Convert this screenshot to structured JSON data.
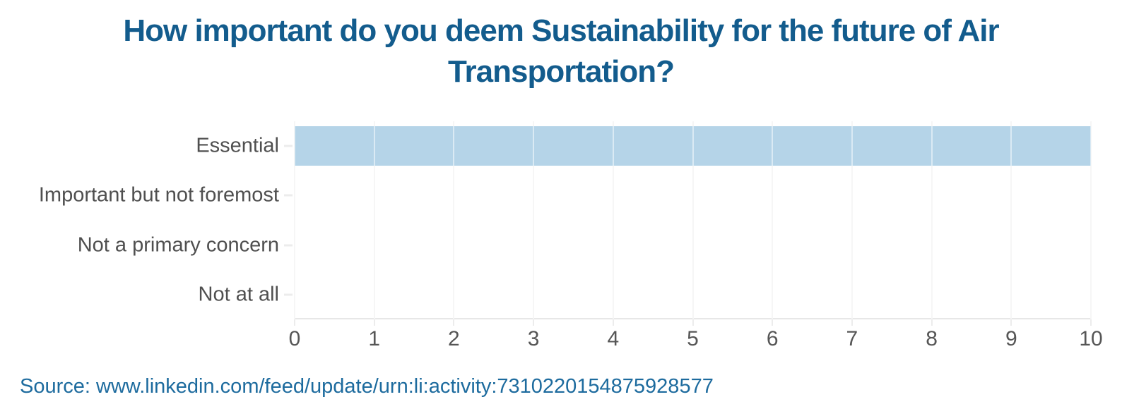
{
  "chart_data": {
    "type": "bar",
    "orientation": "horizontal",
    "title": "How important do you deem Sustainability for the future of Air Transportation?",
    "title_lines": [
      "How important do you deem Sustainability for the future of Air",
      "Transportation?"
    ],
    "categories": [
      "Essential",
      "Important but not foremost",
      "Not a primary concern",
      "Not at all"
    ],
    "values": [
      10,
      0,
      0,
      0
    ],
    "xlabel": "",
    "ylabel": "",
    "xlim": [
      0,
      10
    ],
    "x_ticks": [
      0,
      1,
      2,
      3,
      4,
      5,
      6,
      7,
      8,
      9,
      10
    ],
    "grid": true,
    "legend": false,
    "colors": {
      "bar": "#b5d4e8",
      "title": "#135c8d",
      "category_labels": "#4f4f4f",
      "tick_labels": "#565656",
      "gridline": "#ececec",
      "axis_line": "#e7e7e7"
    }
  },
  "footer": {
    "source_text": "Source: www.linkedin.com/feed/update/urn:li:activity:7310220154875928577",
    "source_color": "#1d6b9e"
  }
}
